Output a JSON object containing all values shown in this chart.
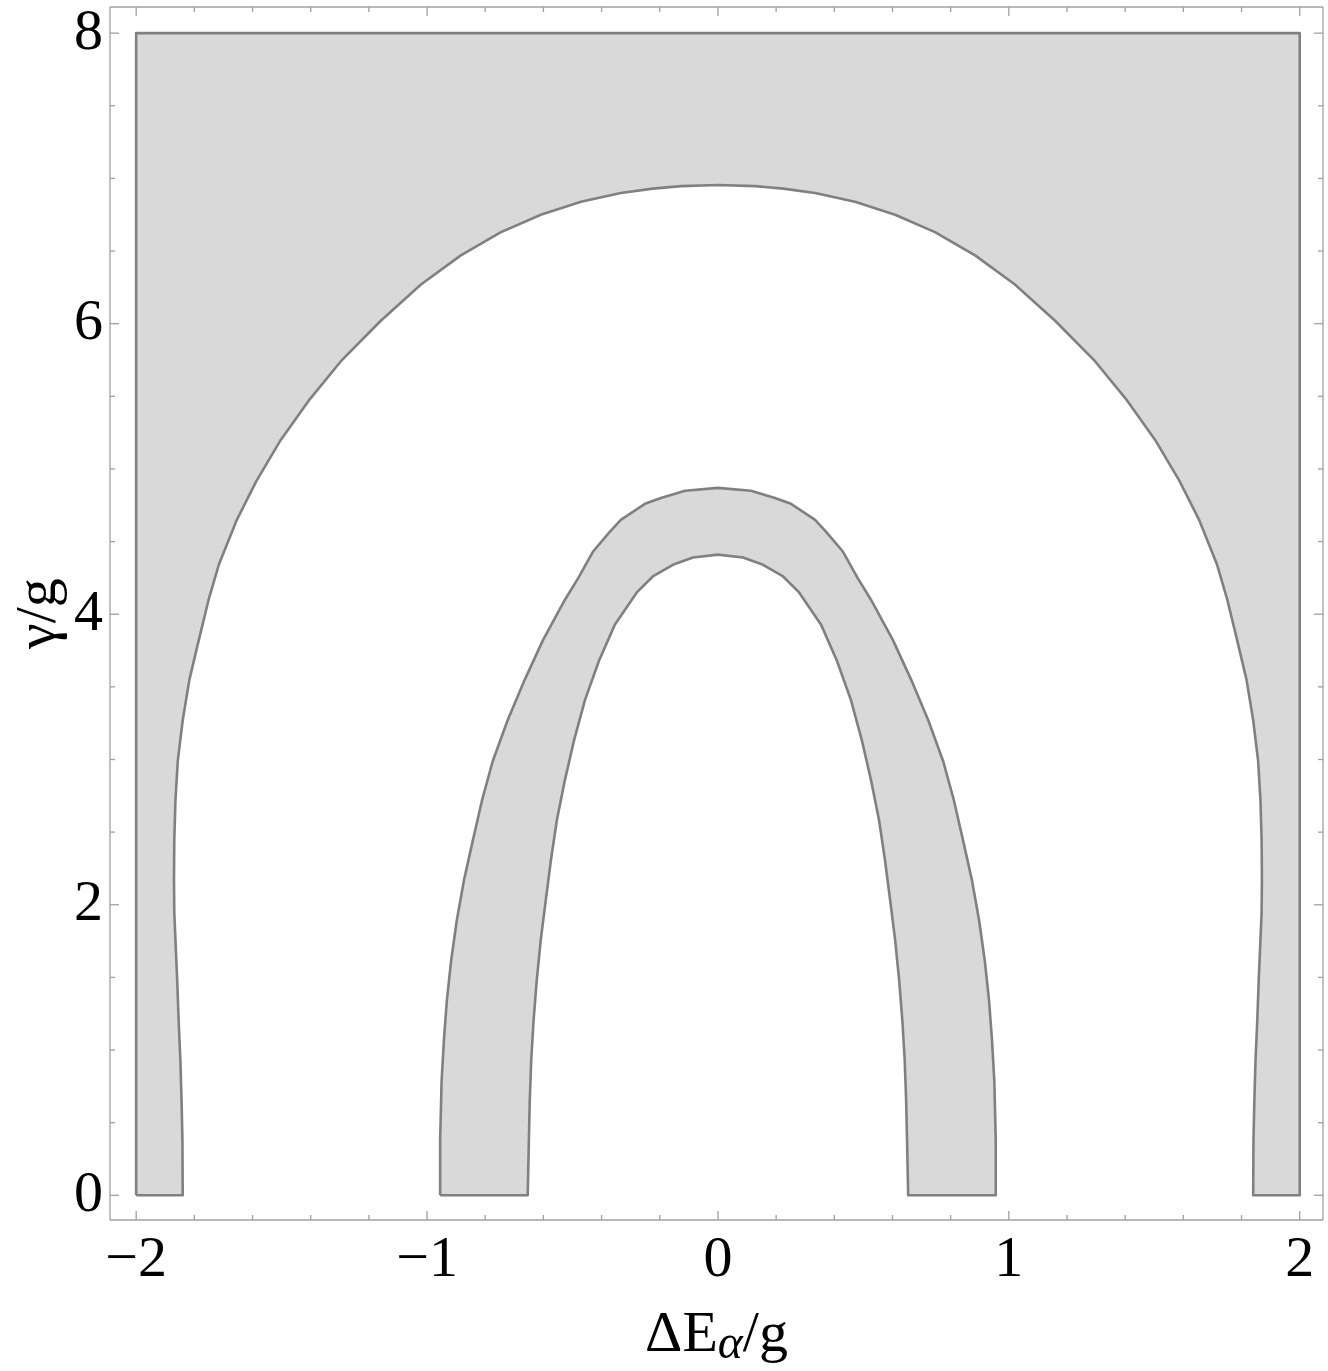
{
  "chart_data": {
    "type": "area",
    "xlabel": "ΔE$_{α}$/g",
    "ylabel": "γ/g",
    "xlim": [
      -2.09,
      2.08
    ],
    "ylim": [
      -0.17,
      8.18
    ],
    "xticks": [
      {
        "value": -2,
        "label": "−2"
      },
      {
        "value": -1.8,
        "label": null
      },
      {
        "value": -1.6,
        "label": null
      },
      {
        "value": -1.4,
        "label": null
      },
      {
        "value": -1.2,
        "label": null
      },
      {
        "value": -1,
        "label": "−1"
      },
      {
        "value": -0.8,
        "label": null
      },
      {
        "value": -0.6,
        "label": null
      },
      {
        "value": -0.4,
        "label": null
      },
      {
        "value": -0.2,
        "label": null
      },
      0,
      {
        "value": 0.2,
        "label": null
      },
      {
        "value": 0.4,
        "label": null
      },
      {
        "value": 0.6,
        "label": null
      },
      {
        "value": 0.8,
        "label": null
      },
      1,
      {
        "value": 1.2,
        "label": null
      },
      {
        "value": 1.4,
        "label": null
      },
      {
        "value": 1.6,
        "label": null
      },
      {
        "value": 1.8,
        "label": null
      },
      2
    ],
    "yticks": [
      0,
      {
        "value": 0.5,
        "label": null
      },
      {
        "value": 1,
        "label": null
      },
      {
        "value": 1.5,
        "label": null
      },
      2,
      {
        "value": 2.5,
        "label": null
      },
      {
        "value": 3,
        "label": null
      },
      {
        "value": 3.5,
        "label": null
      },
      4,
      {
        "value": 4.5,
        "label": null
      },
      {
        "value": 5,
        "label": null
      },
      {
        "value": 5.5,
        "label": null
      },
      6,
      {
        "value": 6.5,
        "label": null
      },
      {
        "value": 7,
        "label": null
      },
      {
        "value": 7.5,
        "label": null
      },
      8
    ],
    "series": [
      {
        "color": "#808080",
        "x": [
          -2,
          -1.84,
          -1.841,
          -1.844,
          -1.848,
          -1.854,
          -1.859,
          -1.865,
          -1.869,
          -1.87,
          -1.869,
          -1.865,
          -1.857,
          -1.84,
          -1.817,
          -1.785,
          -1.751,
          -1.716,
          -1.654,
          -1.586,
          -1.503,
          -1.407,
          -1.297,
          -1.159,
          -1.021,
          -0.884,
          -0.746,
          -0.609,
          -0.471,
          -0.334,
          -0.224,
          -0.127,
          0,
          0.127,
          0.224,
          0.334,
          0.471,
          0.609,
          0.746,
          0.884,
          1.021,
          1.159,
          1.297,
          1.407,
          1.503,
          1.586,
          1.654,
          1.716,
          1.751,
          1.785,
          1.817,
          1.84,
          1.857,
          1.865,
          1.869,
          1.87,
          1.869,
          1.865,
          1.859,
          1.854,
          1.848,
          1.844,
          1.841,
          1.84,
          2,
          2,
          -2,
          -2,
          null,
          -0.955,
          -0.955,
          -0.95,
          -0.942,
          -0.932,
          -0.917,
          -0.898,
          -0.873,
          -0.843,
          -0.811,
          -0.774,
          -0.723,
          -0.664,
          -0.602,
          -0.526,
          -0.48,
          -0.43,
          -0.375,
          -0.334,
          -0.251,
          -0.196,
          -0.113,
          0,
          0.113,
          0.196,
          0.251,
          0.334,
          0.375,
          0.43,
          0.48,
          0.526,
          0.602,
          0.664,
          0.723,
          0.774,
          0.811,
          0.843,
          0.873,
          0.898,
          0.917,
          0.932,
          0.942,
          0.95,
          0.955,
          0.955,
          0.654,
          0.65,
          0.647,
          0.642,
          0.634,
          0.623,
          0.609,
          0.592,
          0.574,
          0.554,
          0.526,
          0.495,
          0.457,
          0.409,
          0.354,
          0.279,
          0.224,
          0.155,
          0.086,
          0,
          -0.086,
          -0.155,
          -0.224,
          -0.279,
          -0.354,
          -0.409,
          -0.457,
          -0.495,
          -0.526,
          -0.554,
          -0.574,
          -0.592,
          -0.609,
          -0.623,
          -0.634,
          -0.642,
          -0.647,
          -0.65,
          -0.654,
          -0.955
        ],
        "values": [
          0,
          0,
          0.38,
          0.65,
          0.93,
          1.2,
          1.48,
          1.76,
          1.95,
          2.17,
          2.44,
          2.72,
          2.99,
          3.27,
          3.55,
          3.82,
          4.1,
          4.34,
          4.65,
          4.92,
          5.2,
          5.47,
          5.74,
          6.02,
          6.27,
          6.47,
          6.63,
          6.75,
          6.84,
          6.9,
          6.93,
          6.947,
          6.955,
          6.947,
          6.93,
          6.9,
          6.84,
          6.75,
          6.63,
          6.47,
          6.27,
          6.02,
          5.74,
          5.47,
          5.2,
          4.92,
          4.65,
          4.34,
          4.1,
          3.82,
          3.55,
          3.27,
          2.99,
          2.72,
          2.44,
          2.17,
          1.95,
          1.76,
          1.48,
          1.2,
          0.93,
          0.65,
          0.38,
          0,
          0,
          8,
          8,
          0,
          null,
          0,
          0.38,
          0.79,
          1.07,
          1.34,
          1.62,
          1.89,
          2.17,
          2.44,
          2.72,
          2.99,
          3.27,
          3.55,
          3.82,
          4.1,
          4.25,
          4.43,
          4.56,
          4.65,
          4.76,
          4.8,
          4.85,
          4.87,
          4.85,
          4.8,
          4.76,
          4.65,
          4.56,
          4.43,
          4.25,
          4.1,
          3.82,
          3.55,
          3.27,
          2.99,
          2.72,
          2.44,
          2.17,
          1.89,
          1.62,
          1.34,
          1.07,
          0.79,
          0.38,
          0,
          0,
          0.38,
          0.65,
          0.93,
          1.2,
          1.48,
          1.76,
          2.03,
          2.31,
          2.58,
          2.86,
          3.13,
          3.41,
          3.68,
          3.93,
          4.15,
          4.26,
          4.34,
          4.39,
          4.41,
          4.39,
          4.34,
          4.26,
          4.15,
          3.93,
          3.68,
          3.41,
          3.13,
          2.86,
          2.58,
          2.31,
          2.03,
          1.76,
          1.48,
          1.2,
          0.93,
          0.65,
          0.38,
          0,
          0
        ]
      }
    ]
  }
}
